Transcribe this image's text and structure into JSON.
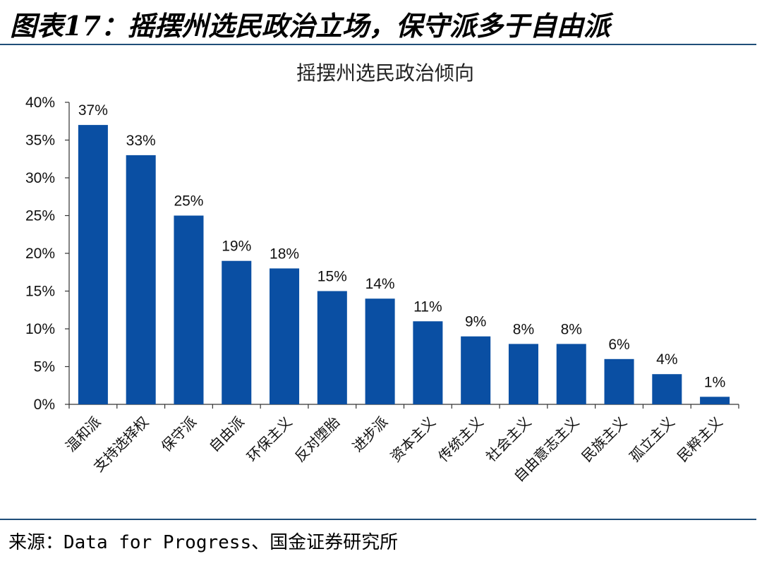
{
  "figure_title": "图表17：摇摆州选民政治立场，保守派多于自由派",
  "source": "来源：Data for Progress、国金证券研究所",
  "colors": {
    "bar": "#0a4fa3",
    "rule": "#1f4e79",
    "axis": "#333333"
  },
  "chart_data": {
    "type": "bar",
    "title": "摇摆州选民政治倾向",
    "categories": [
      "温和派",
      "支持选择权",
      "保守派",
      "自由派",
      "环保主义",
      "反对堕胎",
      "进步派",
      "资本主义",
      "传统主义",
      "社会主义",
      "自由意志主义",
      "民族主义",
      "孤立主义",
      "民粹主义"
    ],
    "values": [
      37,
      33,
      25,
      19,
      18,
      15,
      14,
      11,
      9,
      8,
      8,
      6,
      4,
      1
    ],
    "data_labels": [
      "37%",
      "33%",
      "25%",
      "19%",
      "18%",
      "15%",
      "14%",
      "11%",
      "9%",
      "8%",
      "8%",
      "6%",
      "4%",
      "1%"
    ],
    "ylim": [
      0,
      40
    ],
    "yticks": [
      0,
      5,
      10,
      15,
      20,
      25,
      30,
      35,
      40
    ],
    "ytick_labels": [
      "0%",
      "5%",
      "10%",
      "15%",
      "20%",
      "25%",
      "30%",
      "35%",
      "40%"
    ],
    "xlabel": "",
    "ylabel": "",
    "grid": false,
    "legend": "none"
  }
}
